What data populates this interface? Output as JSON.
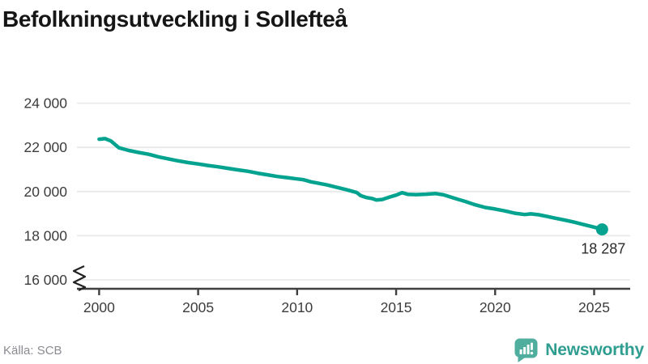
{
  "title": "Befolkningsutveckling i Sollefteå",
  "footer": {
    "source": "Källa: SCB",
    "logo_text": "Newsworthy"
  },
  "colors": {
    "line": "#03a390",
    "grid": "#e9e9e9",
    "axis": "#3f3f3f",
    "tick_label": "#3c3c3c",
    "annotation": "#2b2b2b",
    "title": "#161616",
    "source_text": "#8b8b92",
    "logo_icon": "#4fae9e",
    "logo_text": "#2f9d90"
  },
  "icons": {
    "logo_icon": "newsworthy-speech-bubble-bar-chart-icon",
    "axis_break_icon": "y-axis-break-zigzag-icon"
  },
  "chart_data": {
    "type": "line",
    "title": "Befolkningsutveckling i Sollefteå",
    "xlabel": "",
    "ylabel": "",
    "legend": "none",
    "grid": "horizontal-only",
    "y_axis_break_below_first_tick": true,
    "xlim": [
      1998.88,
      2026.82
    ],
    "ylim": [
      16000,
      24000
    ],
    "x_ticks": [
      {
        "value": 2000,
        "label": "2000"
      },
      {
        "value": 2005,
        "label": "2005"
      },
      {
        "value": 2010,
        "label": "2010"
      },
      {
        "value": 2015,
        "label": "2015"
      },
      {
        "value": 2020,
        "label": "2020"
      },
      {
        "value": 2025,
        "label": "2025"
      }
    ],
    "y_ticks": [
      {
        "value": 16000,
        "label": "16 000"
      },
      {
        "value": 18000,
        "label": "18 000"
      },
      {
        "value": 20000,
        "label": "20 000"
      },
      {
        "value": 22000,
        "label": "22 000"
      },
      {
        "value": 24000,
        "label": "24 000"
      }
    ],
    "series": [
      {
        "points": [
          [
            2000.0,
            22370
          ],
          [
            2000.3,
            22395
          ],
          [
            2000.6,
            22290
          ],
          [
            2001.0,
            21980
          ],
          [
            2001.5,
            21860
          ],
          [
            2002.0,
            21770
          ],
          [
            2002.5,
            21690
          ],
          [
            2003.0,
            21570
          ],
          [
            2003.5,
            21480
          ],
          [
            2004.0,
            21390
          ],
          [
            2004.5,
            21310
          ],
          [
            2005.0,
            21250
          ],
          [
            2005.5,
            21180
          ],
          [
            2006.0,
            21120
          ],
          [
            2006.5,
            21050
          ],
          [
            2007.0,
            20980
          ],
          [
            2007.5,
            20920
          ],
          [
            2008.0,
            20830
          ],
          [
            2008.5,
            20760
          ],
          [
            2009.0,
            20680
          ],
          [
            2009.5,
            20630
          ],
          [
            2010.0,
            20570
          ],
          [
            2010.3,
            20540
          ],
          [
            2010.7,
            20440
          ],
          [
            2011.0,
            20390
          ],
          [
            2011.5,
            20300
          ],
          [
            2012.0,
            20190
          ],
          [
            2012.5,
            20080
          ],
          [
            2013.0,
            19960
          ],
          [
            2013.2,
            19820
          ],
          [
            2013.5,
            19730
          ],
          [
            2013.8,
            19680
          ],
          [
            2014.0,
            19620
          ],
          [
            2014.3,
            19640
          ],
          [
            2014.7,
            19760
          ],
          [
            2015.0,
            19840
          ],
          [
            2015.3,
            19950
          ],
          [
            2015.6,
            19870
          ],
          [
            2016.0,
            19860
          ],
          [
            2016.5,
            19880
          ],
          [
            2017.0,
            19910
          ],
          [
            2017.4,
            19850
          ],
          [
            2018.0,
            19680
          ],
          [
            2018.5,
            19550
          ],
          [
            2019.0,
            19400
          ],
          [
            2019.5,
            19280
          ],
          [
            2020.0,
            19210
          ],
          [
            2020.5,
            19120
          ],
          [
            2021.0,
            19020
          ],
          [
            2021.5,
            18960
          ],
          [
            2021.8,
            18990
          ],
          [
            2022.2,
            18950
          ],
          [
            2022.6,
            18880
          ],
          [
            2023.0,
            18800
          ],
          [
            2023.5,
            18710
          ],
          [
            2024.0,
            18610
          ],
          [
            2024.5,
            18500
          ],
          [
            2025.0,
            18390
          ],
          [
            2025.4,
            18287
          ]
        ]
      }
    ],
    "annotation": {
      "text": "18 287",
      "value": 18287,
      "at_x": 2025.4,
      "marker": "dot-on-last-point"
    }
  }
}
